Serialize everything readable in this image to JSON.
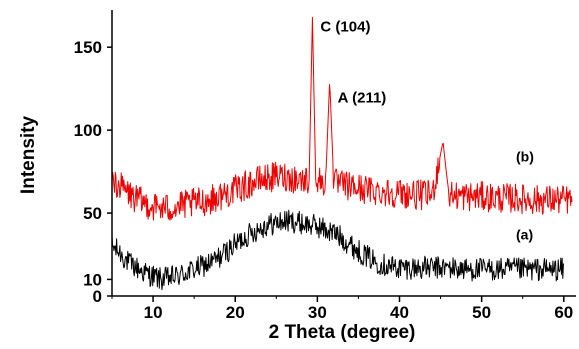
{
  "chart_data": {
    "type": "line",
    "title": "",
    "xlabel": "2 Theta (degree)",
    "ylabel": "Intensity",
    "xlim": [
      5,
      61
    ],
    "ylim": [
      0,
      170
    ],
    "x_ticks": [
      10,
      20,
      30,
      40,
      50,
      60
    ],
    "y_ticks": [
      0,
      10,
      50,
      100,
      150
    ],
    "grid": false,
    "legend": "none",
    "series": [
      {
        "name": "(a)",
        "color": "#000000",
        "points": [
          [
            5,
            30
          ],
          [
            6,
            26
          ],
          [
            7,
            20
          ],
          [
            8,
            17
          ],
          [
            9,
            14
          ],
          [
            10,
            12
          ],
          [
            11,
            10
          ],
          [
            12,
            11
          ],
          [
            13,
            12
          ],
          [
            14,
            14
          ],
          [
            15,
            16
          ],
          [
            16,
            18
          ],
          [
            17,
            20
          ],
          [
            18,
            23
          ],
          [
            19,
            27
          ],
          [
            20,
            31
          ],
          [
            21,
            35
          ],
          [
            22,
            38
          ],
          [
            23,
            41
          ],
          [
            24,
            43
          ],
          [
            25,
            44
          ],
          [
            26,
            45
          ],
          [
            27,
            45
          ],
          [
            28,
            44
          ],
          [
            29,
            43
          ],
          [
            30,
            42
          ],
          [
            31,
            40
          ],
          [
            32,
            38
          ],
          [
            33,
            35
          ],
          [
            34,
            31
          ],
          [
            35,
            27
          ],
          [
            36,
            24
          ],
          [
            37,
            21
          ],
          [
            38,
            19
          ],
          [
            39,
            18
          ],
          [
            40,
            17
          ],
          [
            42,
            17
          ],
          [
            44,
            17
          ],
          [
            46,
            17
          ],
          [
            48,
            16
          ],
          [
            50,
            16
          ],
          [
            52,
            16
          ],
          [
            54,
            16
          ],
          [
            56,
            16
          ],
          [
            58,
            16
          ],
          [
            60,
            16
          ]
        ]
      },
      {
        "name": "(b)",
        "color": "#ee0000",
        "points": [
          [
            5,
            70
          ],
          [
            6,
            66
          ],
          [
            7,
            62
          ],
          [
            8,
            58
          ],
          [
            9,
            56
          ],
          [
            10,
            54
          ],
          [
            11,
            53
          ],
          [
            12,
            53
          ],
          [
            13,
            54
          ],
          [
            14,
            55
          ],
          [
            15,
            56
          ],
          [
            16,
            57
          ],
          [
            17,
            58
          ],
          [
            18,
            60
          ],
          [
            19,
            62
          ],
          [
            20,
            64
          ],
          [
            21,
            66
          ],
          [
            22,
            68
          ],
          [
            23,
            70
          ],
          [
            24,
            71
          ],
          [
            25,
            72
          ],
          [
            26,
            72
          ],
          [
            27,
            71
          ],
          [
            28,
            70
          ],
          [
            29,
            70
          ],
          [
            29.4,
            168
          ],
          [
            29.8,
            70
          ],
          [
            31,
            68
          ],
          [
            31.5,
            130
          ],
          [
            32,
            68
          ],
          [
            33,
            67
          ],
          [
            34,
            66
          ],
          [
            35,
            65
          ],
          [
            36,
            64
          ],
          [
            38,
            63
          ],
          [
            40,
            62
          ],
          [
            42,
            61
          ],
          [
            44,
            61
          ],
          [
            45.3,
            93
          ],
          [
            46,
            61
          ],
          [
            48,
            60
          ],
          [
            50,
            60
          ],
          [
            52,
            59
          ],
          [
            54,
            59
          ],
          [
            56,
            58
          ],
          [
            58,
            58
          ],
          [
            60,
            58
          ],
          [
            61,
            58
          ]
        ]
      }
    ],
    "annotations": [
      {
        "text": "C (104)",
        "x": 29.4,
        "y": 168
      },
      {
        "text": "A (211)",
        "x": 31.5,
        "y": 130
      }
    ]
  }
}
